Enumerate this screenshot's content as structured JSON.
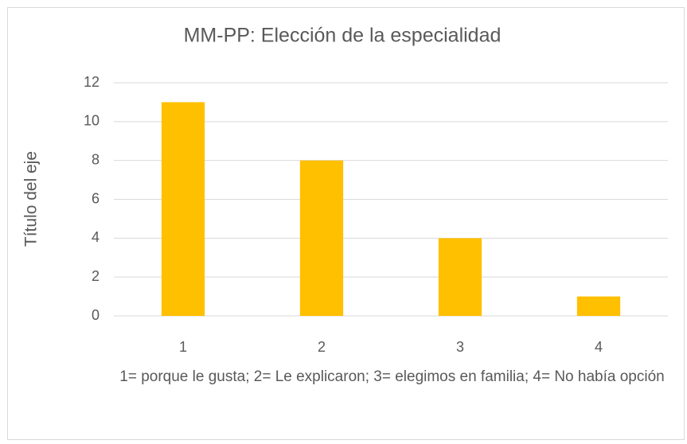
{
  "chart_data": {
    "type": "bar",
    "title": "MM-PP: Elección de la especialidad",
    "categories": [
      "1",
      "2",
      "3",
      "4"
    ],
    "values": [
      11,
      8,
      4,
      1
    ],
    "color": "#ffc000",
    "ylim": [
      0,
      12
    ],
    "yticks": [
      0,
      2,
      4,
      6,
      8,
      10,
      12
    ],
    "grid": true,
    "y_label": "Título del eje",
    "x_label": "1= porque le gusta; 2= Le explicaron; 3= elegimos en familia; 4= No había opción"
  }
}
